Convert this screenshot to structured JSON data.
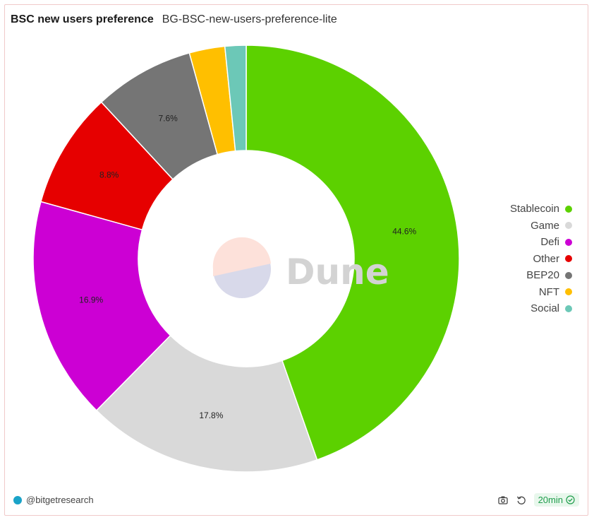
{
  "header": {
    "title": "BSC new users preference",
    "subtitle": "BG-BSC-new-users-preference-lite"
  },
  "chart_data": {
    "type": "pie",
    "variant": "donut",
    "categories": [
      "Stablecoin",
      "Game",
      "Defi",
      "Other",
      "BEP20",
      "NFT",
      "Social"
    ],
    "values": [
      44.6,
      17.8,
      16.9,
      8.8,
      7.6,
      2.7,
      1.6
    ],
    "labels": [
      "44.6%",
      "17.8%",
      "16.9%",
      "8.8%",
      "7.6%",
      "",
      ""
    ],
    "colors": [
      "#5cd100",
      "#d9d9d9",
      "#cc00d4",
      "#e60000",
      "#757575",
      "#ffbf00",
      "#6cc8b7"
    ],
    "legend_position": "right"
  },
  "watermark": {
    "text": "Dune"
  },
  "footer": {
    "author": "@bitgetresearch",
    "refresh": "20min",
    "icons": [
      "camera-icon",
      "refresh-icon",
      "check-circle-icon"
    ]
  }
}
